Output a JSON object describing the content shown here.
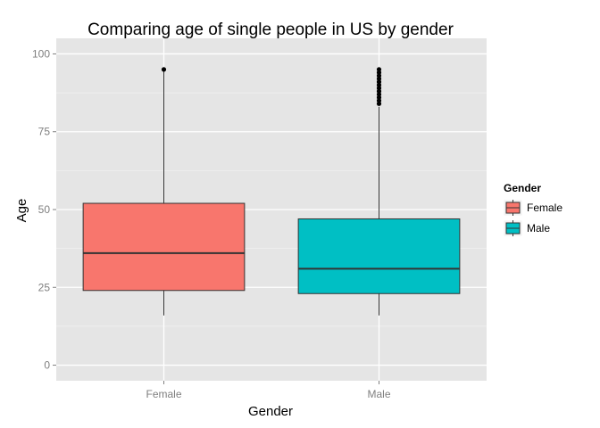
{
  "chart_data": {
    "type": "box",
    "title": "Comparing age of single people in US by gender",
    "xlabel": "Gender",
    "ylabel": "Age",
    "ylim": [
      -5,
      105
    ],
    "yticks": [
      0,
      25,
      50,
      75,
      100
    ],
    "grid": true,
    "legend": {
      "title": "Gender",
      "position": "right",
      "entries": [
        "Female",
        "Male"
      ]
    },
    "categories": [
      "Female",
      "Male"
    ],
    "boxes": [
      {
        "name": "Female",
        "color": "#F8766D",
        "whisker_low": 16,
        "q1": 24,
        "median": 36,
        "q3": 52,
        "whisker_high": 95,
        "outliers": [
          95
        ]
      },
      {
        "name": "Male",
        "color": "#00BFC4",
        "whisker_low": 16,
        "q1": 23,
        "median": 31,
        "q3": 47,
        "whisker_high": 83,
        "outliers": [
          84,
          85,
          86,
          87,
          88,
          89,
          90,
          91,
          92,
          93,
          94,
          95
        ]
      }
    ]
  }
}
